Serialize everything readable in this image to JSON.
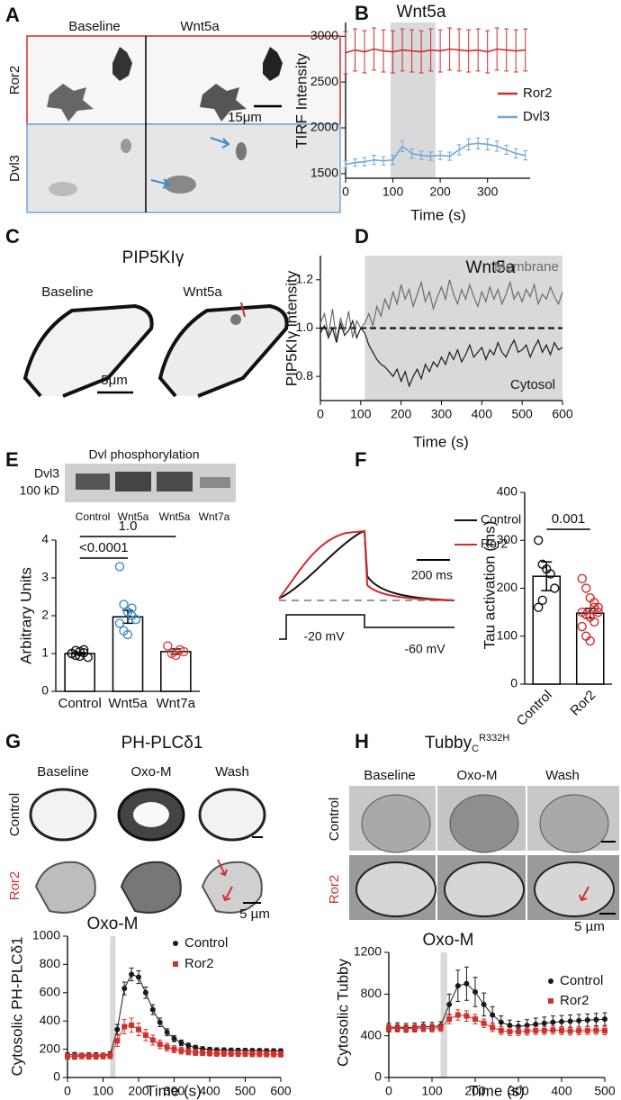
{
  "panels": {
    "A": {
      "label": "A",
      "columns": [
        "Baseline",
        "Wnt5a"
      ],
      "rows": [
        "Ror2",
        "Dvl3"
      ],
      "scale": "15μm"
    },
    "B": {
      "label": "B"
    },
    "C": {
      "label": "C",
      "title": "PIP5KIγ",
      "columns": [
        "Baseline",
        "Wnt5a"
      ],
      "scale": "5μm"
    },
    "D": {
      "label": "D"
    },
    "E": {
      "label": "E",
      "blot_title": "Dvl phosphorylation",
      "blot_labels": [
        "Dvl3",
        "100 kD"
      ],
      "lanes": [
        "Control",
        "Wnt5a",
        "Wnt5a",
        "Wnt7a"
      ]
    },
    "F": {
      "label": "F",
      "legend": [
        "Control",
        "Ror2"
      ],
      "scale": "200 ms",
      "voltages": [
        "-20 mV",
        "-60 mV"
      ]
    },
    "G": {
      "label": "G",
      "title": "PH-PLCδ1",
      "columns": [
        "Baseline",
        "Oxo-M",
        "Wash"
      ],
      "rows": [
        "Control",
        "Ror2"
      ],
      "scale": "5 µm"
    },
    "H": {
      "label": "H",
      "title": "Tubby",
      "title_sub": "C",
      "title_sup": "R332H",
      "columns": [
        "Baseline",
        "Oxo-M",
        "Wash"
      ],
      "rows": [
        "Control",
        "Ror2"
      ],
      "scale": "5 µm"
    }
  },
  "chart_data": [
    {
      "type": "line",
      "annotation": "Wnt5a",
      "xlabel": "Time (s)",
      "ylabel": "TIRF Intensity",
      "x": [
        0,
        20,
        40,
        60,
        80,
        100,
        120,
        140,
        160,
        180,
        200,
        220,
        240,
        260,
        280,
        300,
        320,
        340,
        360,
        380
      ],
      "xlim": [
        0,
        390
      ],
      "xticks": [
        0,
        100,
        200,
        300
      ],
      "ylim": [
        1450,
        3150
      ],
      "yticks": [
        1500,
        2000,
        2500,
        3000
      ],
      "shade": [
        95,
        190
      ],
      "series": [
        {
          "name": "Ror2",
          "color": "#d42a2a",
          "values": [
            2820,
            2850,
            2830,
            2860,
            2840,
            2830,
            2850,
            2840,
            2830,
            2850,
            2840,
            2860,
            2850,
            2840,
            2850,
            2830,
            2860,
            2850,
            2840,
            2850
          ],
          "errors": [
            230,
            230,
            230,
            230,
            230,
            230,
            230,
            230,
            230,
            230,
            230,
            230,
            230,
            230,
            230,
            230,
            230,
            230,
            230,
            230
          ]
        },
        {
          "name": "Dvl3",
          "color": "#6fa8dc",
          "values": [
            1600,
            1620,
            1630,
            1650,
            1640,
            1650,
            1800,
            1720,
            1700,
            1690,
            1700,
            1690,
            1760,
            1820,
            1830,
            1820,
            1800,
            1760,
            1720,
            1700
          ],
          "errors": [
            40,
            40,
            45,
            50,
            45,
            50,
            60,
            50,
            45,
            45,
            45,
            45,
            55,
            60,
            60,
            60,
            55,
            50,
            50,
            50
          ]
        }
      ]
    },
    {
      "type": "line",
      "annotation": "Wnt5a",
      "xlabel": "Time (s)",
      "ylabel": "PIP5KIγ intensity",
      "x": [
        0,
        10,
        20,
        30,
        40,
        50,
        60,
        70,
        80,
        90,
        100,
        110,
        120,
        130,
        140,
        150,
        160,
        170,
        180,
        190,
        200,
        210,
        220,
        230,
        240,
        250,
        260,
        270,
        280,
        290,
        300,
        310,
        320,
        330,
        340,
        350,
        360,
        370,
        380,
        390,
        400,
        410,
        420,
        430,
        440,
        450,
        460,
        470,
        480,
        490,
        500,
        510,
        520,
        530,
        540,
        550,
        560,
        570,
        580,
        590,
        600
      ],
      "xlim": [
        0,
        600
      ],
      "xticks": [
        0,
        100,
        200,
        300,
        400,
        500,
        600
      ],
      "ylim": [
        0.7,
        1.3
      ],
      "yticks": [
        0.8,
        {
          "value": 1,
          "label": "1.0"
        },
        1.2
      ],
      "shade": [
        110,
        600
      ],
      "hline": 1,
      "series": [
        {
          "name": "Membrane",
          "color": "#6b6b6b",
          "values": [
            1.02,
            1.06,
            0.97,
            1.08,
            0.95,
            1.04,
            0.99,
            1.07,
            0.96,
            1.03,
            1.0,
            1.02,
            1.06,
            1.01,
            1.09,
            1.05,
            1.12,
            1.08,
            1.15,
            1.1,
            1.18,
            1.12,
            1.16,
            1.09,
            1.14,
            1.19,
            1.11,
            1.15,
            1.08,
            1.13,
            1.17,
            1.12,
            1.2,
            1.14,
            1.1,
            1.16,
            1.12,
            1.18,
            1.13,
            1.09,
            1.15,
            1.11,
            1.17,
            1.12,
            1.16,
            1.1,
            1.14,
            1.19,
            1.12,
            1.15,
            1.11,
            1.16,
            1.13,
            1.18,
            1.1,
            1.14,
            1.12,
            1.17,
            1.13,
            1.1,
            1.15
          ]
        },
        {
          "name": "Cytosol",
          "color": "#1a1a1a",
          "values": [
            0.98,
            1.01,
            0.96,
            1.0,
            0.94,
            1.02,
            0.97,
            0.99,
            1.03,
            0.96,
            1.0,
            0.98,
            0.93,
            0.9,
            0.87,
            0.85,
            0.84,
            0.82,
            0.8,
            0.83,
            0.78,
            0.82,
            0.76,
            0.8,
            0.83,
            0.79,
            0.85,
            0.82,
            0.86,
            0.84,
            0.88,
            0.85,
            0.9,
            0.87,
            0.91,
            0.86,
            0.89,
            0.93,
            0.88,
            0.9,
            0.92,
            0.87,
            0.91,
            0.89,
            0.94,
            0.9,
            0.88,
            0.92,
            0.95,
            0.9,
            0.91,
            0.93,
            0.88,
            0.92,
            0.95,
            0.9,
            0.93,
            0.89,
            0.94,
            0.91,
            0.92
          ]
        }
      ]
    },
    {
      "type": "bar",
      "ylabel": "Arbitrary Units",
      "categories": [
        "Control",
        "Wnt5a",
        "Wnt7a"
      ],
      "values": [
        1.0,
        1.97,
        1.05
      ],
      "errors": [
        0.03,
        0.17,
        0.07
      ],
      "points": [
        [
          1.0,
          0.95,
          1.05,
          1.1,
          0.9,
          1.0,
          1.08,
          0.93,
          1.02
        ],
        [
          3.3,
          2.3,
          2.1,
          2.0,
          1.9,
          1.8,
          1.6,
          1.5,
          2.2,
          1.9
        ],
        [
          1.2,
          1.0,
          0.95,
          1.1,
          1.05
        ]
      ],
      "point_colors": [
        "#111111",
        "#3a8fc8",
        "#d9413b"
      ],
      "ylim": [
        0,
        4
      ],
      "yticks": [
        0,
        1,
        2,
        3,
        4
      ],
      "significance": [
        "<0.0001",
        "1.0"
      ]
    },
    {
      "type": "bar",
      "ylabel": "Tau activation (ms)",
      "categories": [
        "Control",
        "Ror2"
      ],
      "values": [
        225,
        148
      ],
      "errors": [
        30,
        10
      ],
      "points": [
        [
          300,
          250,
          240,
          230,
          200,
          160,
          175
        ],
        [
          220,
          200,
          180,
          170,
          160,
          150,
          145,
          140,
          130,
          150,
          120,
          100,
          90,
          160
        ]
      ],
      "point_colors": [
        "#111111",
        "#d42a2a"
      ],
      "ylim": [
        0,
        400
      ],
      "yticks": [
        0,
        100,
        200,
        300,
        400
      ],
      "significance": [
        "0.001"
      ]
    },
    {
      "type": "line",
      "annotation": "Oxo-M",
      "xlabel": "Time (s)",
      "ylabel": "Cytosolic PH-PLCδ1",
      "x": [
        0,
        20,
        40,
        60,
        80,
        100,
        120,
        140,
        160,
        180,
        200,
        220,
        240,
        260,
        280,
        300,
        320,
        340,
        360,
        380,
        400,
        420,
        440,
        460,
        480,
        500,
        520,
        540,
        560,
        580,
        600
      ],
      "xlim": [
        0,
        600
      ],
      "xticks": [
        0,
        100,
        200,
        300,
        400,
        500,
        600
      ],
      "ylim": [
        0,
        1000
      ],
      "yticks": [
        0,
        200,
        400,
        600,
        800,
        1000
      ],
      "shade": [
        120,
        135
      ],
      "series": [
        {
          "name": "Control",
          "color": "#1a1a1a",
          "marker": "circle",
          "values": [
            160,
            162,
            158,
            160,
            160,
            158,
            165,
            340,
            630,
            730,
            710,
            600,
            480,
            390,
            320,
            275,
            245,
            226,
            212,
            203,
            198,
            195,
            194,
            193,
            192,
            191,
            190,
            190,
            189,
            188,
            188
          ],
          "errors": [
            15,
            15,
            15,
            15,
            15,
            15,
            18,
            35,
            45,
            45,
            45,
            40,
            35,
            30,
            25,
            22,
            20,
            18,
            16,
            15,
            15,
            15,
            15,
            15,
            15,
            15,
            15,
            15,
            15,
            15,
            15
          ]
        },
        {
          "name": "Ror2",
          "color": "#d0312d",
          "marker": "square",
          "values": [
            150,
            148,
            152,
            150,
            149,
            151,
            155,
            260,
            360,
            370,
            340,
            300,
            265,
            235,
            215,
            200,
            190,
            182,
            178,
            175,
            172,
            170,
            170,
            169,
            168,
            168,
            167,
            167,
            166,
            166,
            165
          ],
          "errors": [
            20,
            20,
            20,
            20,
            20,
            20,
            22,
            40,
            50,
            50,
            45,
            40,
            35,
            30,
            28,
            25,
            24,
            22,
            22,
            20,
            20,
            20,
            20,
            20,
            20,
            20,
            20,
            20,
            20,
            20,
            20
          ]
        }
      ]
    },
    {
      "type": "line",
      "annotation": "Oxo-M",
      "xlabel": "Time (s)",
      "ylabel": "Cytosolic Tubby",
      "x": [
        0,
        20,
        40,
        60,
        80,
        100,
        120,
        140,
        160,
        180,
        200,
        220,
        240,
        260,
        280,
        300,
        320,
        340,
        360,
        380,
        400,
        420,
        440,
        460,
        480,
        500
      ],
      "xlim": [
        0,
        500
      ],
      "xticks": [
        0,
        100,
        200,
        300,
        400,
        500
      ],
      "ylim": [
        0,
        1200
      ],
      "yticks": [
        0,
        400,
        800,
        1200
      ],
      "shade": [
        120,
        135
      ],
      "series": [
        {
          "name": "Control",
          "color": "#1a1a1a",
          "marker": "circle",
          "values": [
            480,
            485,
            478,
            482,
            490,
            488,
            495,
            700,
            880,
            900,
            820,
            700,
            600,
            530,
            500,
            490,
            500,
            510,
            520,
            530,
            535,
            540,
            545,
            550,
            555,
            560
          ],
          "errors": [
            40,
            40,
            40,
            40,
            40,
            40,
            40,
            100,
            150,
            160,
            140,
            110,
            80,
            60,
            50,
            50,
            55,
            60,
            60,
            60,
            60,
            60,
            60,
            60,
            60,
            60
          ]
        },
        {
          "name": "Ror2",
          "color": "#d0312d",
          "marker": "square",
          "values": [
            470,
            472,
            468,
            470,
            475,
            472,
            478,
            560,
            600,
            590,
            560,
            520,
            480,
            450,
            440,
            440,
            445,
            450,
            450,
            455,
            450,
            445,
            448,
            450,
            452,
            448
          ],
          "errors": [
            35,
            35,
            35,
            35,
            35,
            35,
            35,
            45,
            50,
            50,
            45,
            40,
            40,
            38,
            38,
            38,
            38,
            38,
            38,
            38,
            38,
            38,
            38,
            38,
            38,
            38
          ]
        }
      ]
    }
  ]
}
